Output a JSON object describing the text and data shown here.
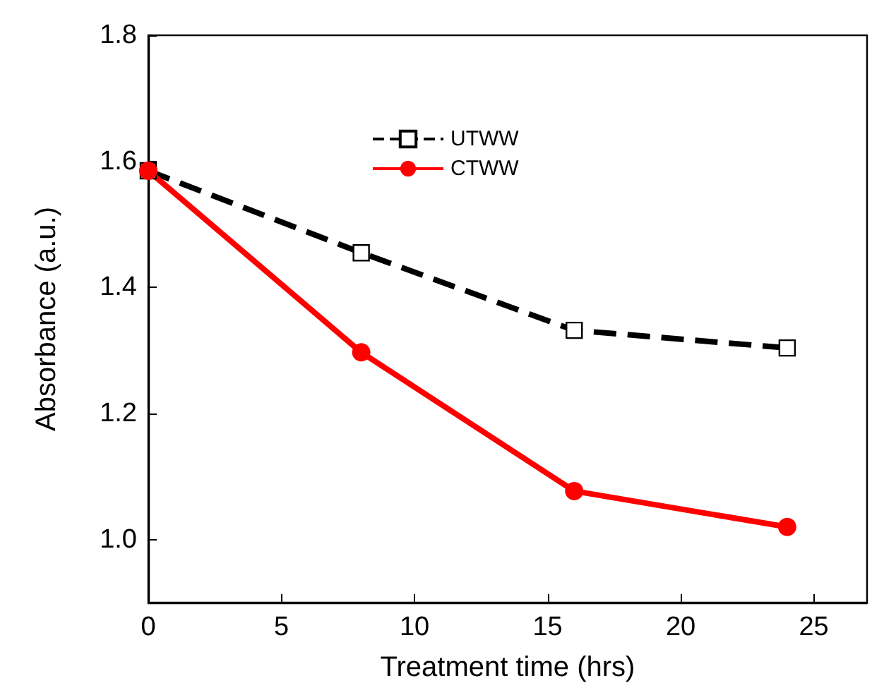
{
  "chart_data": {
    "type": "line",
    "xlabel": "Treatment time (hrs)",
    "ylabel": "Absorbance (a.u.)",
    "x": [
      0,
      8,
      16,
      24
    ],
    "series": [
      {
        "name": "UTWW",
        "color": "#000000",
        "values": [
          1.585,
          1.455,
          1.332,
          1.304
        ],
        "marker": "square",
        "line_style": "dashed"
      },
      {
        "name": "CTWW",
        "color": "#ff0000",
        "values": [
          1.585,
          1.297,
          1.077,
          1.02
        ],
        "marker": "circle",
        "line_style": "solid"
      }
    ],
    "xlim": [
      0,
      27
    ],
    "xticks": [
      0,
      5,
      10,
      15,
      20,
      25
    ],
    "ylim": [
      0.9,
      1.8
    ],
    "yticks": [
      {
        "value": 1,
        "label": "1.0"
      },
      1.2,
      1.4,
      1.6,
      1.8
    ],
    "grid": false,
    "legend": "top"
  }
}
